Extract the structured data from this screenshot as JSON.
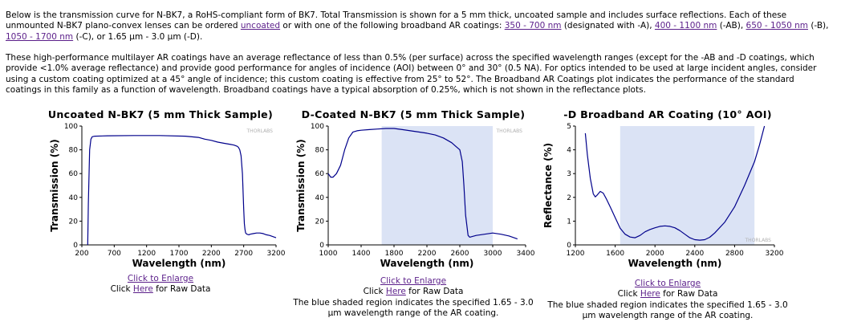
{
  "intro": {
    "p1_a": "Below is the transmission curve for N-BK7, a RoHS-compliant form of BK7. Total Transmission is shown for a 5 mm thick, uncoated sample and includes surface reflections. Each of these unmounted N-BK7 plano-convex lenses can be ordered ",
    "link_uncoated": "uncoated",
    "p1_b": " or with one of the following broadband AR coatings: ",
    "link_350": "350 - 700 nm",
    "p1_c": " (designated with -A), ",
    "link_400": "400 - 1100 nm",
    "p1_d": " (-AB), ",
    "link_650": "650 - 1050 nm",
    "p1_e": " (-B), ",
    "link_1050": "1050 - 1700 nm",
    "p1_f": " (-C), or 1.65 µm - 3.0 µm (-D).",
    "p2": "These high-performance multilayer AR coatings have an average reflectance of less than 0.5% (per surface) across the specified wavelength ranges (except for the -AB and -D coatings, which provide <1.0% average reflectance) and provide good performance for angles of incidence (AOI) between 0° and 30° (0.5 NA). For optics intended to be used at large incident angles, consider using a custom coating optimized at a 45° angle of incidence; this custom coating is effective from 25° to 52°. The Broadband AR Coatings plot indicates the performance of the standard coatings in this family as a function of wavelength. Broadband coatings have a typical absorption of 0.25%, which is not shown in the reflectance plots."
  },
  "watermark": "THORLABS",
  "panels": [
    {
      "title": "Uncoated N-BK7 (5 mm Thick Sample)",
      "enlarge": "Click to Enlarge",
      "raw_prefix": "Click ",
      "raw_link": "Here",
      "raw_suffix": " for Raw Data",
      "note": ""
    },
    {
      "title": "D-Coated N-BK7 (5 mm Thick Sample)",
      "enlarge": "Click to Enlarge",
      "raw_prefix": "Click ",
      "raw_link": "Here",
      "raw_suffix": " for Raw Data",
      "note": "The blue shaded region indicates the specified 1.65 - 3.0 µm wavelength range of the AR coating."
    },
    {
      "title": "-D Broadband AR Coating (10° AOI)",
      "enlarge": "Click to Enlarge",
      "raw_prefix": "Click ",
      "raw_link": "Here",
      "raw_suffix": " for Raw Data",
      "note": "The blue shaded region indicates the specified 1.65 - 3.0 µm wavelength range of the AR coating."
    }
  ],
  "chart_data": [
    {
      "type": "line",
      "title": "Uncoated N-BK7 (5 mm Thick Sample)",
      "xlabel": "Wavelength (nm)",
      "ylabel": "Transmission (%)",
      "xlim": [
        200,
        3200
      ],
      "ylim": [
        0,
        100
      ],
      "xticks": [
        200,
        700,
        1200,
        1700,
        2200,
        2700,
        3200
      ],
      "yticks": [
        0,
        20,
        40,
        60,
        80,
        100
      ],
      "shaded_range": null,
      "line_color": "#00008b",
      "series": [
        {
          "x": [
            290,
            300,
            320,
            340,
            360,
            400,
            600,
            1000,
            1400,
            1800,
            2000,
            2100,
            2200,
            2300,
            2400,
            2500,
            2550,
            2600,
            2620,
            2640,
            2660,
            2680,
            2700,
            2710,
            2720,
            2730,
            2750,
            2780,
            2800,
            2850,
            2900,
            2950,
            3000,
            3050,
            3100,
            3200
          ],
          "y": [
            0,
            35,
            80,
            89,
            91,
            91.5,
            91.8,
            92,
            92,
            91.5,
            90.5,
            89,
            88,
            86.5,
            85.5,
            84.5,
            84,
            83,
            82,
            80,
            75,
            60,
            30,
            18,
            13,
            10,
            9,
            8.5,
            9,
            9.5,
            10,
            10,
            9.5,
            8.5,
            8,
            6
          ]
        }
      ]
    },
    {
      "type": "line",
      "title": "D-Coated N-BK7 (5 mm Thick Sample)",
      "xlabel": "Wavelength (nm)",
      "ylabel": "Transmission (%)",
      "xlim": [
        1000,
        3400
      ],
      "ylim": [
        0,
        100
      ],
      "xticks": [
        1000,
        1400,
        1800,
        2200,
        2600,
        3000,
        3400
      ],
      "yticks": [
        0,
        20,
        40,
        60,
        80,
        100
      ],
      "shaded_range": [
        1650,
        3000
      ],
      "line_color": "#00008b",
      "series": [
        {
          "x": [
            1000,
            1030,
            1060,
            1100,
            1150,
            1200,
            1250,
            1300,
            1350,
            1400,
            1500,
            1600,
            1700,
            1800,
            1900,
            2000,
            2100,
            2200,
            2300,
            2400,
            2500,
            2550,
            2600,
            2630,
            2650,
            2670,
            2700,
            2720,
            2750,
            2800,
            2900,
            3000,
            3100,
            3200,
            3300
          ],
          "y": [
            60,
            57,
            57,
            60,
            67,
            80,
            90,
            95,
            96,
            96.5,
            97,
            97.5,
            98,
            98,
            97,
            96,
            95,
            94,
            92.5,
            90,
            86,
            83,
            80,
            70,
            50,
            25,
            8,
            6.5,
            7,
            8,
            9,
            10,
            9,
            7.5,
            5
          ]
        }
      ]
    },
    {
      "type": "line",
      "title": "-D Broadband AR Coating (10° AOI)",
      "xlabel": "Wavelength (nm)",
      "ylabel": "Reflectance (%)",
      "xlim": [
        1200,
        3200
      ],
      "ylim": [
        0,
        5
      ],
      "xticks": [
        1200,
        1600,
        2000,
        2400,
        2800,
        3200
      ],
      "yticks": [
        0,
        1,
        2,
        3,
        4,
        5
      ],
      "shaded_range": [
        1650,
        3000
      ],
      "line_color": "#00008b",
      "series": [
        {
          "x": [
            1300,
            1320,
            1350,
            1380,
            1400,
            1420,
            1450,
            1480,
            1510,
            1550,
            1600,
            1650,
            1700,
            1750,
            1800,
            1850,
            1900,
            1950,
            2000,
            2050,
            2100,
            2150,
            2200,
            2250,
            2300,
            2350,
            2400,
            2450,
            2500,
            2550,
            2600,
            2700,
            2800,
            2900,
            3000,
            3050,
            3100
          ],
          "y": [
            4.7,
            3.8,
            2.8,
            2.15,
            2.02,
            2.1,
            2.25,
            2.18,
            1.95,
            1.6,
            1.15,
            0.7,
            0.45,
            0.33,
            0.3,
            0.4,
            0.55,
            0.65,
            0.72,
            0.78,
            0.8,
            0.78,
            0.72,
            0.6,
            0.45,
            0.3,
            0.22,
            0.2,
            0.22,
            0.32,
            0.5,
            0.95,
            1.6,
            2.5,
            3.5,
            4.2,
            5.0
          ]
        }
      ]
    }
  ]
}
